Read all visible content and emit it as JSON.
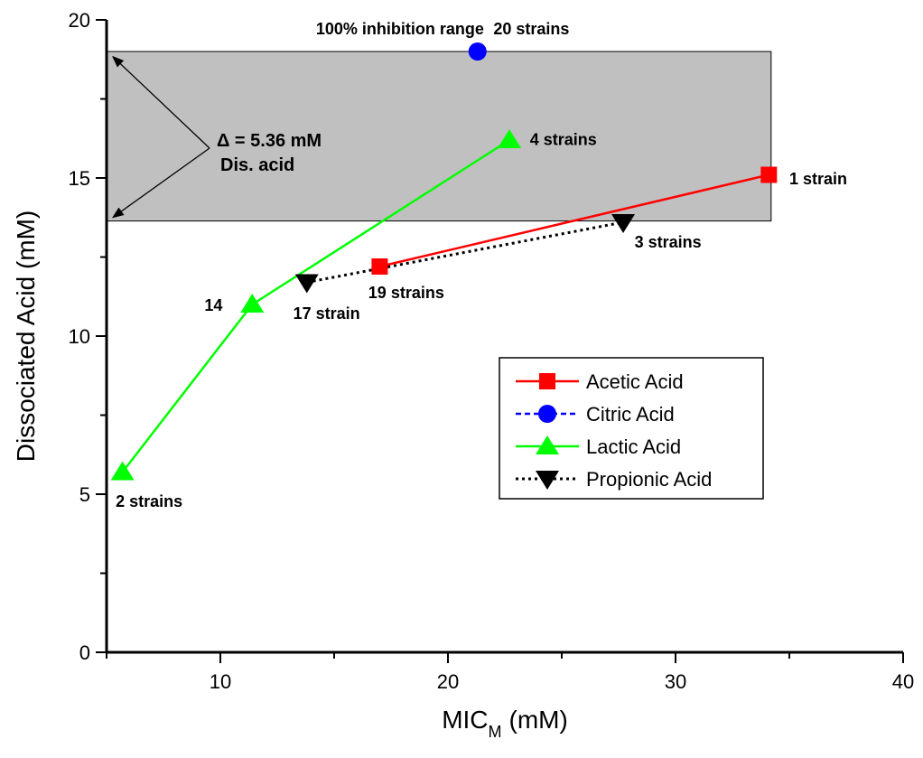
{
  "chart_data": {
    "type": "line",
    "title": "",
    "xlabel": "MIC",
    "xlabel_sub": "M",
    "xlabel_unit": "(mM)",
    "ylabel": "Dissociated Acid (mM)",
    "xlim": [
      5,
      40
    ],
    "ylim": [
      0,
      20
    ],
    "x_ticks": [
      10,
      20,
      30,
      40
    ],
    "y_ticks": [
      0,
      5,
      10,
      15,
      20
    ],
    "grid": false,
    "legend_position": "center-right",
    "shaded_band": {
      "y_range": [
        13.64,
        19.0
      ],
      "x_range": [
        5,
        34.2
      ],
      "color": "#c0c0c0"
    },
    "series": [
      {
        "name": "Acetic Acid",
        "color": "#ff0000",
        "marker": "square",
        "line": "solid",
        "x": [
          17.0,
          34.1
        ],
        "y": [
          12.2,
          15.1
        ]
      },
      {
        "name": "Citric Acid",
        "color": "#0000ff",
        "marker": "circle",
        "line": "dashed",
        "x": [
          21.3
        ],
        "y": [
          19.0
        ]
      },
      {
        "name": "Lactic Acid",
        "color": "#00ff00",
        "marker": "triangle-up",
        "line": "solid",
        "x": [
          5.7,
          11.4,
          22.7
        ],
        "y": [
          5.7,
          11.0,
          16.2
        ]
      },
      {
        "name": "Propionic Acid",
        "color": "#000000",
        "marker": "triangle-down",
        "line": "dotted",
        "x": [
          13.8,
          27.7
        ],
        "y": [
          11.7,
          13.6
        ]
      }
    ],
    "annotations": [
      {
        "text": "100% inhibition range",
        "x": 14.2,
        "y": 19.55
      },
      {
        "text": "20 strains",
        "x": 22.0,
        "y": 19.55
      },
      {
        "text": "4 strains",
        "x": 23.6,
        "y": 16.05
      },
      {
        "text": "1 strain",
        "x": 35.0,
        "y": 14.8
      },
      {
        "text": "3 strains",
        "x": 28.2,
        "y": 12.8
      },
      {
        "text": "19 strains",
        "x": 16.5,
        "y": 11.2
      },
      {
        "text": "17 strain",
        "x": 13.2,
        "y": 10.55
      },
      {
        "text": "14",
        "x": 9.3,
        "y": 10.8
      },
      {
        "text": "2 strains",
        "x": 5.4,
        "y": 4.6
      }
    ],
    "delta_label": {
      "symbol": "Δ",
      "line1": " = 5.36 mM",
      "line2": "Dis. acid"
    }
  }
}
